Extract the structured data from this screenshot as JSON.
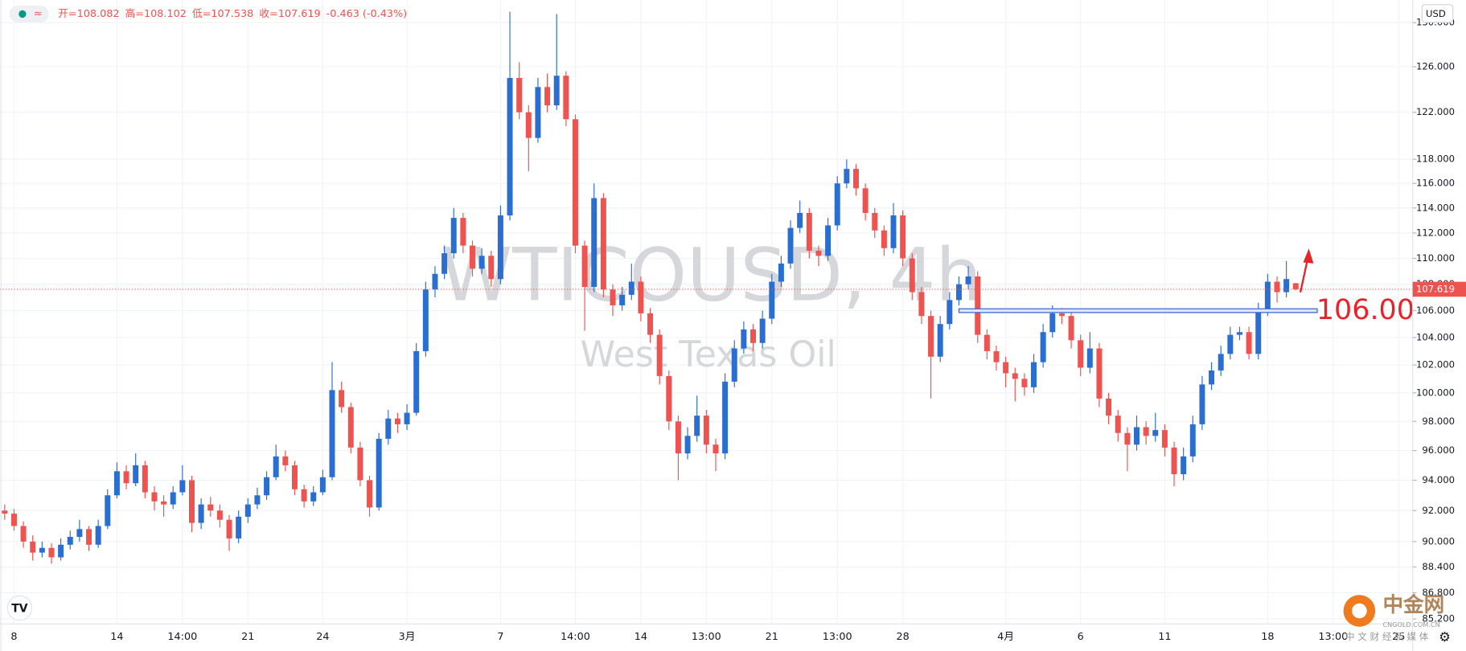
{
  "chart_data": {
    "type": "candlestick",
    "title": "WTICOUSD, 4h",
    "subtitle": "West Texas Oil",
    "legend_items": [
      "开=108.082",
      "高=108.102",
      "低=107.538",
      "收=107.619",
      "-0.463 (-0.43%)"
    ],
    "currency": "USD",
    "up_color": "#2a6ed2",
    "down_color": "#ef5350",
    "y_scale": "log",
    "grid": true,
    "ylim": [
      84.9,
      132.1
    ],
    "yticks": [
      {
        "value": 85.2,
        "label": "85.200"
      },
      {
        "value": 86.8,
        "label": "86.800"
      },
      {
        "value": 88.4,
        "label": "88.400"
      },
      {
        "value": 90,
        "label": "90.000"
      },
      {
        "value": 92,
        "label": "92.000"
      },
      {
        "value": 94,
        "label": "94.000"
      },
      {
        "value": 96,
        "label": "96.000"
      },
      {
        "value": 98,
        "label": "98.000"
      },
      {
        "value": 100,
        "label": "100.000"
      },
      {
        "value": 102,
        "label": "102.000"
      },
      {
        "value": 104,
        "label": "104.000"
      },
      {
        "value": 106,
        "label": "106.000"
      },
      {
        "value": 108,
        "label": "108.000"
      },
      {
        "value": 110,
        "label": "110.000"
      },
      {
        "value": 112,
        "label": "112.000"
      },
      {
        "value": 114,
        "label": "114.000"
      },
      {
        "value": 116,
        "label": "116.000"
      },
      {
        "value": 118,
        "label": "118.000"
      },
      {
        "value": 122,
        "label": "122.000"
      },
      {
        "value": 126,
        "label": "126.000"
      },
      {
        "value": 130,
        "label": "130.000"
      }
    ],
    "last_price": 107.619,
    "annotation": {
      "label": "106.00",
      "level": 106
    },
    "categories": [
      null,
      "8",
      null,
      null,
      null,
      null,
      null,
      null,
      null,
      null,
      null,
      null,
      "14",
      null,
      null,
      null,
      null,
      null,
      null,
      "14:00",
      null,
      null,
      null,
      null,
      null,
      null,
      "21",
      null,
      null,
      null,
      null,
      null,
      null,
      null,
      "24",
      null,
      null,
      null,
      null,
      null,
      null,
      null,
      null,
      "3月",
      null,
      null,
      null,
      null,
      null,
      null,
      null,
      null,
      null,
      "7",
      null,
      null,
      null,
      null,
      null,
      null,
      null,
      "14:00",
      null,
      null,
      null,
      null,
      null,
      null,
      "14",
      null,
      null,
      null,
      null,
      null,
      null,
      "13:00",
      null,
      null,
      null,
      null,
      null,
      null,
      "21",
      null,
      null,
      null,
      null,
      null,
      null,
      "13:00",
      null,
      null,
      null,
      null,
      null,
      null,
      "28",
      null,
      null,
      null,
      null,
      null,
      null,
      null,
      null,
      null,
      null,
      "4月",
      null,
      null,
      null,
      null,
      null,
      null,
      null,
      "6",
      null,
      null,
      null,
      null,
      null,
      null,
      null,
      null,
      "11",
      null,
      null,
      null,
      null,
      null,
      null,
      null,
      null,
      null,
      null,
      "18",
      null,
      null,
      null,
      null,
      null,
      null,
      "13:00",
      null,
      null,
      null,
      null,
      null,
      null,
      "25"
    ],
    "candles": [
      [
        92.0,
        92.4,
        91.4,
        91.8
      ],
      [
        91.8,
        92.1,
        90.7,
        91.0
      ],
      [
        91.0,
        91.3,
        89.6,
        90.0
      ],
      [
        90.0,
        90.4,
        88.8,
        89.3
      ],
      [
        89.3,
        90.0,
        89.0,
        89.6
      ],
      [
        89.6,
        89.9,
        88.6,
        89.0
      ],
      [
        89.0,
        90.2,
        88.8,
        89.8
      ],
      [
        89.8,
        90.7,
        89.5,
        90.3
      ],
      [
        90.3,
        91.4,
        90.0,
        90.8
      ],
      [
        90.8,
        91.0,
        89.4,
        89.8
      ],
      [
        89.8,
        91.4,
        89.6,
        91.0
      ],
      [
        91.0,
        93.4,
        90.8,
        93.0
      ],
      [
        93.0,
        95.2,
        92.8,
        94.6
      ],
      [
        94.6,
        95.0,
        93.4,
        93.8
      ],
      [
        93.8,
        95.8,
        93.6,
        95.0
      ],
      [
        95.0,
        95.3,
        92.8,
        93.2
      ],
      [
        93.2,
        93.6,
        92.0,
        92.6
      ],
      [
        92.6,
        93.0,
        91.6,
        92.4
      ],
      [
        92.4,
        93.6,
        92.1,
        93.2
      ],
      [
        93.2,
        95.0,
        93.0,
        94.0
      ],
      [
        94.0,
        94.3,
        90.6,
        91.2
      ],
      [
        91.2,
        92.8,
        90.8,
        92.4
      ],
      [
        92.4,
        92.9,
        91.6,
        92.0
      ],
      [
        92.0,
        92.4,
        90.9,
        91.4
      ],
      [
        91.4,
        91.7,
        89.4,
        90.2
      ],
      [
        90.2,
        92.0,
        89.9,
        91.6
      ],
      [
        91.6,
        92.8,
        91.2,
        92.4
      ],
      [
        92.4,
        93.5,
        92.1,
        93.0
      ],
      [
        93.0,
        94.6,
        92.7,
        94.2
      ],
      [
        94.2,
        96.4,
        94.0,
        95.6
      ],
      [
        95.6,
        96.0,
        94.6,
        95.0
      ],
      [
        95.0,
        95.3,
        93.0,
        93.4
      ],
      [
        93.4,
        93.7,
        92.2,
        92.6
      ],
      [
        92.6,
        93.6,
        92.3,
        93.2
      ],
      [
        93.2,
        94.7,
        93.0,
        94.2
      ],
      [
        94.2,
        102.2,
        94.0,
        100.2
      ],
      [
        100.2,
        100.8,
        98.6,
        99.0
      ],
      [
        99.0,
        99.3,
        95.8,
        96.2
      ],
      [
        96.2,
        96.6,
        93.6,
        94.0
      ],
      [
        94.0,
        94.3,
        91.6,
        92.2
      ],
      [
        92.2,
        97.2,
        92.0,
        96.8
      ],
      [
        96.8,
        98.8,
        96.4,
        98.2
      ],
      [
        98.2,
        98.6,
        97.2,
        97.8
      ],
      [
        97.8,
        99.2,
        97.4,
        98.6
      ],
      [
        98.6,
        103.6,
        98.4,
        103.0
      ],
      [
        103.0,
        108.2,
        102.6,
        107.6
      ],
      [
        107.6,
        109.4,
        107.0,
        108.8
      ],
      [
        108.8,
        111.0,
        108.4,
        110.4
      ],
      [
        110.4,
        114.0,
        110.0,
        113.2
      ],
      [
        113.2,
        113.6,
        110.4,
        111.0
      ],
      [
        111.0,
        111.4,
        108.6,
        109.2
      ],
      [
        109.2,
        110.8,
        108.8,
        110.2
      ],
      [
        110.2,
        110.6,
        107.8,
        108.4
      ],
      [
        108.4,
        114.2,
        108.0,
        113.4
      ],
      [
        113.4,
        131.0,
        113.0,
        125.0
      ],
      [
        125.0,
        126.4,
        121.4,
        122.0
      ],
      [
        122.0,
        122.6,
        117.0,
        119.8
      ],
      [
        119.8,
        125.0,
        119.4,
        124.2
      ],
      [
        124.2,
        125.4,
        122.0,
        122.6
      ],
      [
        122.6,
        130.8,
        122.2,
        125.2
      ],
      [
        125.2,
        125.6,
        120.8,
        121.4
      ],
      [
        121.4,
        121.8,
        110.4,
        111.0
      ],
      [
        111.0,
        111.4,
        104.5,
        107.8
      ],
      [
        107.8,
        116.0,
        107.4,
        114.8
      ],
      [
        114.8,
        115.2,
        107.0,
        107.6
      ],
      [
        107.6,
        108.0,
        105.6,
        106.4
      ],
      [
        106.4,
        107.8,
        106.0,
        107.2
      ],
      [
        107.2,
        109.6,
        106.8,
        108.2
      ],
      [
        108.2,
        108.6,
        105.2,
        105.8
      ],
      [
        105.8,
        106.2,
        103.6,
        104.2
      ],
      [
        104.2,
        104.6,
        100.6,
        101.2
      ],
      [
        101.2,
        101.6,
        97.4,
        98.0
      ],
      [
        98.0,
        98.4,
        94.0,
        95.8
      ],
      [
        95.8,
        97.6,
        95.4,
        97.0
      ],
      [
        97.0,
        99.8,
        96.6,
        98.4
      ],
      [
        98.4,
        98.8,
        95.8,
        96.4
      ],
      [
        96.4,
        96.8,
        94.6,
        95.8
      ],
      [
        95.8,
        101.4,
        95.4,
        100.8
      ],
      [
        100.8,
        103.8,
        100.4,
        103.2
      ],
      [
        103.2,
        105.2,
        102.8,
        104.6
      ],
      [
        104.6,
        105.0,
        103.0,
        103.6
      ],
      [
        103.6,
        106.0,
        103.2,
        105.4
      ],
      [
        105.4,
        108.8,
        105.0,
        108.2
      ],
      [
        108.2,
        110.2,
        107.8,
        109.6
      ],
      [
        109.6,
        113.0,
        109.2,
        112.4
      ],
      [
        112.4,
        114.6,
        112.0,
        113.6
      ],
      [
        113.6,
        114.0,
        110.0,
        110.6
      ],
      [
        110.6,
        111.0,
        109.4,
        110.2
      ],
      [
        110.2,
        113.2,
        109.8,
        112.6
      ],
      [
        112.6,
        116.6,
        112.2,
        116.0
      ],
      [
        116.0,
        118.0,
        115.6,
        117.2
      ],
      [
        117.2,
        117.6,
        115.0,
        115.6
      ],
      [
        115.6,
        116.0,
        113.0,
        113.6
      ],
      [
        113.6,
        114.0,
        111.6,
        112.2
      ],
      [
        112.2,
        112.6,
        110.2,
        110.8
      ],
      [
        110.8,
        114.4,
        110.4,
        113.4
      ],
      [
        113.4,
        113.8,
        109.4,
        110.0
      ],
      [
        110.0,
        110.4,
        106.8,
        107.4
      ],
      [
        107.4,
        107.8,
        105.0,
        105.6
      ],
      [
        105.6,
        106.0,
        99.6,
        102.6
      ],
      [
        102.6,
        105.6,
        102.2,
        105.0
      ],
      [
        105.0,
        107.4,
        104.6,
        106.8
      ],
      [
        106.8,
        108.6,
        106.4,
        108.0
      ],
      [
        108.0,
        109.4,
        107.6,
        108.6
      ],
      [
        108.6,
        109.0,
        103.6,
        104.2
      ],
      [
        104.2,
        104.6,
        102.4,
        103.0
      ],
      [
        103.0,
        103.4,
        101.6,
        102.2
      ],
      [
        102.2,
        102.6,
        100.4,
        101.4
      ],
      [
        101.4,
        101.8,
        99.4,
        101.0
      ],
      [
        101.0,
        101.4,
        99.8,
        100.4
      ],
      [
        100.4,
        102.8,
        100.0,
        102.2
      ],
      [
        102.2,
        105.0,
        101.8,
        104.4
      ],
      [
        104.4,
        106.4,
        104.0,
        105.8
      ],
      [
        105.8,
        106.2,
        105.0,
        105.6
      ],
      [
        105.6,
        106.0,
        103.2,
        103.8
      ],
      [
        103.8,
        104.2,
        101.2,
        101.8
      ],
      [
        101.8,
        104.4,
        101.4,
        103.2
      ],
      [
        103.2,
        103.6,
        99.0,
        99.6
      ],
      [
        99.6,
        100.0,
        97.8,
        98.4
      ],
      [
        98.4,
        98.8,
        96.6,
        97.2
      ],
      [
        97.2,
        97.6,
        94.6,
        96.4
      ],
      [
        96.4,
        98.4,
        96.0,
        97.6
      ],
      [
        97.6,
        98.0,
        96.4,
        97.0
      ],
      [
        97.0,
        98.6,
        96.6,
        97.4
      ],
      [
        97.4,
        97.8,
        95.6,
        96.2
      ],
      [
        96.2,
        96.6,
        93.6,
        94.4
      ],
      [
        94.4,
        96.2,
        94.0,
        95.6
      ],
      [
        95.6,
        98.4,
        95.2,
        97.8
      ],
      [
        97.8,
        101.2,
        97.4,
        100.6
      ],
      [
        100.6,
        102.2,
        100.2,
        101.6
      ],
      [
        101.6,
        103.4,
        101.2,
        102.8
      ],
      [
        102.8,
        104.8,
        102.4,
        104.2
      ],
      [
        104.2,
        104.8,
        103.8,
        104.4
      ],
      [
        104.4,
        104.8,
        102.4,
        102.8
      ],
      [
        102.8,
        106.6,
        102.4,
        106.0
      ],
      [
        106.0,
        108.8,
        105.6,
        108.2
      ],
      [
        108.2,
        108.6,
        106.6,
        107.4
      ],
      [
        107.4,
        109.8,
        107.0,
        108.4
      ],
      [
        108.082,
        108.102,
        107.538,
        107.619
      ],
      null,
      null,
      null,
      null,
      null,
      null,
      null,
      null,
      null,
      null,
      null
    ],
    "watermark": {
      "name": "中金网",
      "domain": "CNGOLD.COM.CN",
      "slogan": "中 文 财 经 新 媒 体"
    }
  }
}
